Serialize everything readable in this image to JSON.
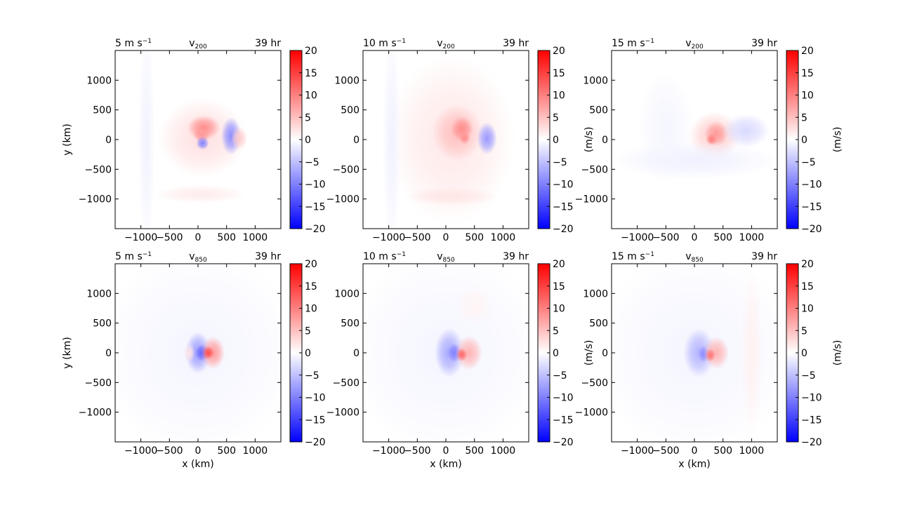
{
  "chart_data": {
    "type": "heatmap",
    "panels": [
      {
        "left_title": "5 m s",
        "left_title_sup": "−1",
        "center_title": "v",
        "center_title_sub": "200",
        "right_title": "39 hr",
        "ylabel": "y (km)",
        "xlabel": "",
        "colorbar_label": "",
        "blobs": [
          {
            "x": 80,
            "y": 30,
            "sx": 480,
            "sy": 420,
            "v": 2.5
          },
          {
            "x": 100,
            "y": 200,
            "sx": 180,
            "sy": 130,
            "v": 9
          },
          {
            "x": 60,
            "y": 80,
            "sx": 90,
            "sy": 80,
            "v": 8
          },
          {
            "x": 80,
            "y": -60,
            "sx": 70,
            "sy": 70,
            "v": -10
          },
          {
            "x": 580,
            "y": 60,
            "sx": 110,
            "sy": 200,
            "v": -9
          },
          {
            "x": 720,
            "y": 20,
            "sx": 90,
            "sy": 120,
            "v": 4
          },
          {
            "x": -900,
            "y": 0,
            "sx": 90,
            "sy": 1200,
            "v": -1
          },
          {
            "x": 40,
            "y": -920,
            "sx": 500,
            "sy": 100,
            "v": 1.5
          }
        ]
      },
      {
        "left_title": "10 m s",
        "left_title_sup": "−1",
        "center_title": "v",
        "center_title_sub": "200",
        "right_title": "39 hr",
        "ylabel": "",
        "xlabel": "",
        "colorbar_label": "(m/s)",
        "blobs": [
          {
            "x": 100,
            "y": 0,
            "sx": 700,
            "sy": 900,
            "v": 1.8
          },
          {
            "x": 200,
            "y": 120,
            "sx": 280,
            "sy": 300,
            "v": 5
          },
          {
            "x": 280,
            "y": 180,
            "sx": 120,
            "sy": 130,
            "v": 9
          },
          {
            "x": 330,
            "y": 20,
            "sx": 60,
            "sy": 60,
            "v": 9
          },
          {
            "x": 720,
            "y": 20,
            "sx": 110,
            "sy": 170,
            "v": -8
          },
          {
            "x": -950,
            "y": 0,
            "sx": 100,
            "sy": 1200,
            "v": -1
          },
          {
            "x": 100,
            "y": -950,
            "sx": 500,
            "sy": 100,
            "v": 2
          }
        ]
      },
      {
        "left_title": "15 m s",
        "left_title_sup": "−1",
        "center_title": "v",
        "center_title_sub": "200",
        "right_title": "39 hr",
        "ylabel": "",
        "xlabel": "",
        "colorbar_label": "(m/s)",
        "blobs": [
          {
            "x": 350,
            "y": 60,
            "sx": 280,
            "sy": 260,
            "v": 4
          },
          {
            "x": 380,
            "y": 100,
            "sx": 130,
            "sy": 130,
            "v": 8
          },
          {
            "x": 300,
            "y": 0,
            "sx": 60,
            "sy": 60,
            "v": 10
          },
          {
            "x": 900,
            "y": 150,
            "sx": 260,
            "sy": 180,
            "v": -3
          },
          {
            "x": 0,
            "y": -350,
            "sx": 900,
            "sy": 200,
            "v": -1.2
          },
          {
            "x": -500,
            "y": 200,
            "sx": 300,
            "sy": 600,
            "v": -0.8
          }
        ]
      },
      {
        "left_title": "5 m s",
        "left_title_sup": "−1",
        "center_title": "v",
        "center_title_sub": "850",
        "right_title": "39 hr",
        "ylabel": "y (km)",
        "xlabel": "x (km)",
        "colorbar_label": "",
        "blobs": [
          {
            "x": 0,
            "y": 0,
            "sx": 1100,
            "sy": 1100,
            "v": -0.8
          },
          {
            "x": 0,
            "y": 0,
            "sx": 140,
            "sy": 220,
            "v": -8
          },
          {
            "x": 70,
            "y": 0,
            "sx": 70,
            "sy": 90,
            "v": -12
          },
          {
            "x": 260,
            "y": 0,
            "sx": 130,
            "sy": 170,
            "v": 8
          },
          {
            "x": 180,
            "y": 0,
            "sx": 60,
            "sy": 70,
            "v": 14
          },
          {
            "x": -150,
            "y": 0,
            "sx": 60,
            "sy": 100,
            "v": 2
          }
        ]
      },
      {
        "left_title": "10 m s",
        "left_title_sup": "−1",
        "center_title": "v",
        "center_title_sub": "850",
        "right_title": "39 hr",
        "ylabel": "",
        "xlabel": "x (km)",
        "colorbar_label": "(m/s)",
        "blobs": [
          {
            "x": 0,
            "y": 0,
            "sx": 1100,
            "sy": 1100,
            "v": -0.8
          },
          {
            "x": 60,
            "y": 0,
            "sx": 160,
            "sy": 260,
            "v": -7
          },
          {
            "x": 150,
            "y": 0,
            "sx": 70,
            "sy": 100,
            "v": -10
          },
          {
            "x": 400,
            "y": 0,
            "sx": 150,
            "sy": 180,
            "v": 6
          },
          {
            "x": 280,
            "y": -30,
            "sx": 60,
            "sy": 70,
            "v": 12
          },
          {
            "x": 500,
            "y": 800,
            "sx": 200,
            "sy": 200,
            "v": 0.8
          }
        ]
      },
      {
        "left_title": "15 m s",
        "left_title_sup": "−1",
        "center_title": "v",
        "center_title_sub": "850",
        "right_title": "39 hr",
        "ylabel": "",
        "xlabel": "x (km)",
        "colorbar_label": "(m/s)",
        "blobs": [
          {
            "x": 0,
            "y": 0,
            "sx": 1100,
            "sy": 1100,
            "v": -0.8
          },
          {
            "x": 80,
            "y": 0,
            "sx": 170,
            "sy": 260,
            "v": -6
          },
          {
            "x": 160,
            "y": -20,
            "sx": 60,
            "sy": 90,
            "v": -9
          },
          {
            "x": 380,
            "y": 0,
            "sx": 140,
            "sy": 170,
            "v": 6
          },
          {
            "x": 280,
            "y": -40,
            "sx": 55,
            "sy": 70,
            "v": 11
          },
          {
            "x": 1000,
            "y": 0,
            "sx": 120,
            "sy": 900,
            "v": 1
          }
        ]
      }
    ],
    "xlim": [
      -1450,
      1450
    ],
    "ylim": [
      -1500,
      1500
    ],
    "x_ticks": [
      -1000,
      -500,
      0,
      500,
      1000
    ],
    "x_tick_labels": [
      "−1000",
      "−500",
      "0",
      "500",
      "1000"
    ],
    "y_ticks": [
      1000,
      500,
      0,
      -500,
      -1000
    ],
    "y_tick_labels": [
      "1000",
      "500",
      "0",
      "−500",
      "−1000"
    ],
    "colorbar_range": [
      -20,
      20
    ],
    "colorbar_ticks": [
      20,
      15,
      10,
      5,
      0,
      -5,
      -10,
      -15,
      -20
    ],
    "colorbar_tick_labels": [
      "20",
      "15",
      "10",
      "5",
      "0",
      "−5",
      "−10",
      "−15",
      "−20"
    ],
    "colormap": "bwr",
    "colors": {
      "min": "#0000ff",
      "mid": "#ffffff",
      "max": "#ff0000"
    }
  }
}
